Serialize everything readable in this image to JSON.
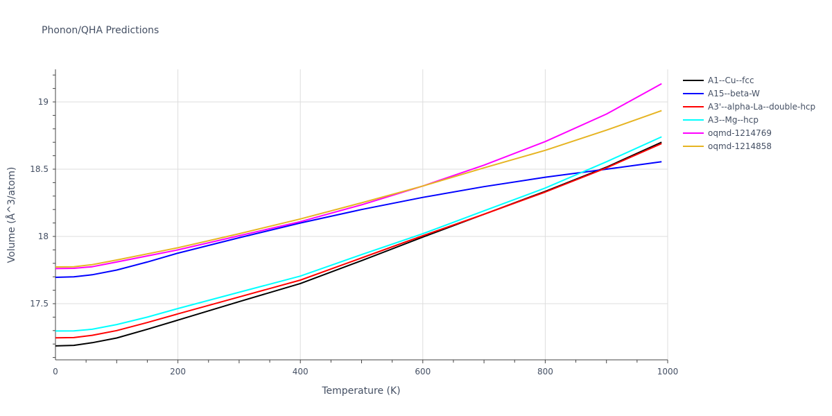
{
  "title": "Phonon/QHA Predictions",
  "chart_data": {
    "type": "line",
    "title": "Phonon/QHA Predictions",
    "xlabel": "Temperature (K)",
    "ylabel": "Volume (Å^3/atom)",
    "xlim": [
      0,
      1000
    ],
    "ylim": [
      17.06,
      19.25
    ],
    "xticks": [
      0,
      200,
      400,
      600,
      800,
      1000
    ],
    "yticks": [
      17.5,
      18,
      18.5,
      19
    ],
    "ytick_labels": [
      "17.5",
      "18",
      "18.5",
      "19"
    ],
    "grid": true,
    "legend_position": "right",
    "x": [
      0,
      30,
      60,
      100,
      150,
      200,
      300,
      400,
      500,
      600,
      700,
      800,
      900,
      990
    ],
    "series": [
      {
        "name": "A1--Cu--fcc",
        "color": "#000000",
        "values": [
          17.186,
          17.19,
          17.21,
          17.245,
          17.31,
          17.378,
          17.515,
          17.65,
          17.82,
          17.995,
          18.165,
          18.335,
          18.515,
          18.7
        ]
      },
      {
        "name": "A15--beta-W",
        "color": "#0000ff",
        "values": [
          17.696,
          17.7,
          17.715,
          17.75,
          17.81,
          17.876,
          17.99,
          18.1,
          18.2,
          18.29,
          18.37,
          18.44,
          18.5,
          18.555
        ]
      },
      {
        "name": "A3'--alpha-La--double-hcp",
        "color": "#ff0000",
        "values": [
          17.246,
          17.248,
          17.265,
          17.3,
          17.36,
          17.424,
          17.55,
          17.675,
          17.84,
          18.005,
          18.165,
          18.33,
          18.51,
          18.69
        ]
      },
      {
        "name": "A3--Mg--hcp",
        "color": "#00ffff",
        "values": [
          17.297,
          17.298,
          17.31,
          17.345,
          17.4,
          17.464,
          17.585,
          17.705,
          17.865,
          18.02,
          18.19,
          18.36,
          18.555,
          18.74
        ]
      },
      {
        "name": "oqmd-1214769",
        "color": "#ff00ff",
        "values": [
          17.761,
          17.763,
          17.775,
          17.81,
          17.855,
          17.9,
          18.005,
          18.11,
          18.235,
          18.375,
          18.53,
          18.705,
          18.91,
          19.135
        ]
      },
      {
        "name": "oqmd-1214858",
        "color": "#e6b422",
        "values": [
          17.773,
          17.775,
          17.79,
          17.825,
          17.87,
          17.916,
          18.02,
          18.13,
          18.25,
          18.375,
          18.51,
          18.64,
          18.79,
          18.935
        ]
      }
    ]
  }
}
